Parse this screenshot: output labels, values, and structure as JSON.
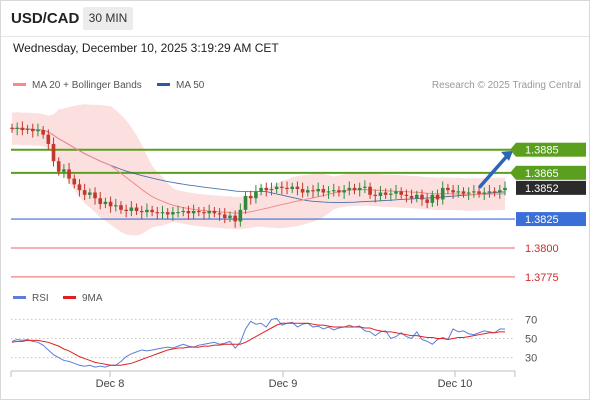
{
  "header": {
    "symbol": "USD/CAD",
    "timeframe": "30 MIN",
    "datetime": "Wednesday, December 10, 2025 3:19:29 AM CET"
  },
  "legend": {
    "ma20_label": "MA 20 + Bollinger Bands",
    "ma50_label": "MA 50",
    "copyright": "Research © 2025 Trading Central"
  },
  "rsi_legend": {
    "rsi_label": "RSI",
    "ma_label": "9MA"
  },
  "colors": {
    "up": "#2e8b3e",
    "down": "#c0392b",
    "resistance": "#5aa01e",
    "pivot": "#3a6fd8",
    "support": "#f28080",
    "ma20": "#f28b8b",
    "ma50": "#2c5aa0",
    "bands": "#fbd5d5",
    "arrow": "#2b66b8",
    "rsi": "#5b7fd6",
    "rsi_ma": "#e02020"
  },
  "chart_data": [
    {
      "type": "candlestick",
      "x_labels": [
        "Dec 8",
        "Dec 9",
        "Dec 10"
      ],
      "y_range": [
        1.3768,
        1.3915
      ],
      "last_price": 1.3852,
      "price_labels": {
        "r2": "1.3885",
        "r1": "1.3865",
        "last": "1.3852",
        "pivot": "1.3825",
        "s1": "1.3800",
        "s2": "1.3775"
      },
      "levels": {
        "r2": 1.3885,
        "r1": 1.3865,
        "pivot": 1.3825,
        "s1": 1.38,
        "s2": 1.3775
      },
      "series": [
        {
          "name": "USD/CAD",
          "close": [
            1.3903,
            1.3904,
            1.3902,
            1.3903,
            1.3901,
            1.3902,
            1.3898,
            1.389,
            1.3875,
            1.3866,
            1.3868,
            1.386,
            1.3855,
            1.385,
            1.3846,
            1.3848,
            1.3843,
            1.3838,
            1.384,
            1.3836,
            1.3837,
            1.3833,
            1.3832,
            1.3835,
            1.3832,
            1.3831,
            1.3833,
            1.3831,
            1.383,
            1.3831,
            1.3829,
            1.3831,
            1.3831,
            1.3832,
            1.383,
            1.3832,
            1.3831,
            1.383,
            1.3832,
            1.383,
            1.3829,
            1.3826,
            1.3828,
            1.3823,
            1.3833,
            1.3845,
            1.3843,
            1.3849,
            1.3852,
            1.385,
            1.3851,
            1.3853,
            1.3852,
            1.3851,
            1.3853,
            1.3851,
            1.3848,
            1.385,
            1.3849,
            1.3851,
            1.3848,
            1.3849,
            1.385,
            1.3848,
            1.385,
            1.3852,
            1.385,
            1.3852,
            1.3853,
            1.3846,
            1.3845,
            1.3848,
            1.3846,
            1.3847,
            1.3849,
            1.3846,
            1.3845,
            1.3843,
            1.3846,
            1.3842,
            1.3839,
            1.3846,
            1.3842,
            1.3852,
            1.385,
            1.3848,
            1.3849,
            1.3847,
            1.3848,
            1.3849,
            1.3847,
            1.3848,
            1.3849,
            1.3848,
            1.385,
            1.3852
          ]
        }
      ],
      "indicators": [
        "MA 20 + Bollinger Bands",
        "MA 50"
      ]
    },
    {
      "type": "line",
      "x_labels": [
        "Dec 8",
        "Dec 9",
        "Dec 10"
      ],
      "y_ticks": [
        "70",
        "50",
        "30"
      ],
      "y_range": [
        17,
        83
      ],
      "series": [
        {
          "name": "RSI",
          "values": [
            47,
            49,
            48,
            49,
            47,
            46,
            43,
            38,
            33,
            30,
            27,
            26,
            24,
            22,
            21,
            22,
            20,
            21,
            20,
            22,
            22,
            26,
            31,
            34,
            36,
            38,
            37,
            38,
            39,
            40,
            41,
            40,
            42,
            44,
            42,
            41,
            43,
            44,
            45,
            46,
            44,
            45,
            47,
            40,
            46,
            60,
            68,
            65,
            66,
            62,
            70,
            71,
            64,
            66,
            67,
            62,
            65,
            66,
            62,
            63,
            60,
            62,
            59,
            61,
            62,
            64,
            62,
            63,
            58,
            57,
            53,
            57,
            58,
            50,
            52,
            56,
            52,
            50,
            57,
            49,
            47,
            44,
            49,
            51,
            49,
            60,
            57,
            58,
            55,
            54,
            56,
            58,
            57,
            56,
            60,
            60
          ]
        },
        {
          "name": "9MA",
          "values": [
            46,
            47,
            47,
            48,
            48,
            48,
            47,
            46,
            44,
            42,
            39,
            37,
            34,
            31,
            29,
            27,
            25,
            24,
            23,
            22,
            22,
            22,
            23,
            24,
            26,
            28,
            30,
            32,
            34,
            36,
            38,
            39,
            40,
            40,
            41,
            41,
            41,
            42,
            42,
            43,
            43,
            44,
            44,
            44,
            44,
            46,
            49,
            52,
            55,
            58,
            61,
            64,
            66,
            66,
            66,
            66,
            66,
            66,
            65,
            64,
            64,
            63,
            62,
            62,
            62,
            62,
            62,
            62,
            61,
            61,
            59,
            58,
            57,
            57,
            56,
            55,
            54,
            53,
            53,
            52,
            51,
            51,
            50,
            50,
            49,
            50,
            51,
            51,
            52,
            53,
            54,
            55,
            56,
            56,
            57,
            57
          ]
        }
      ]
    }
  ]
}
